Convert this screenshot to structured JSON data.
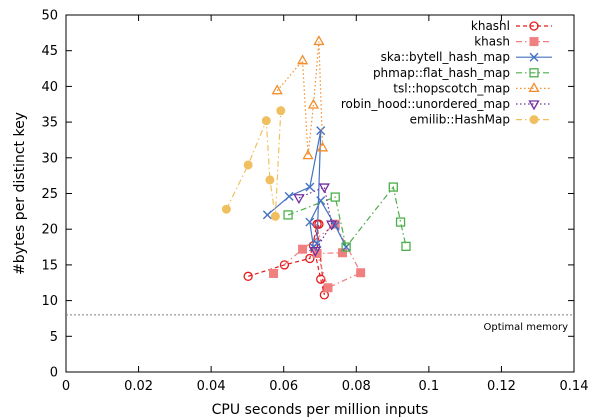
{
  "chart_data": {
    "type": "line",
    "xlabel": "CPU seconds per million inputs",
    "ylabel": "#bytes per distinct key",
    "xlim": [
      0,
      0.14
    ],
    "ylim": [
      0,
      50
    ],
    "xticks": [
      0,
      0.02,
      0.04,
      0.06,
      0.08,
      0.1,
      0.12,
      0.14
    ],
    "xtick_labels": [
      "0",
      "0.02",
      "0.04",
      "0.06",
      "0.08",
      "0.1",
      "0.12",
      "0.14"
    ],
    "yticks": [
      0,
      5,
      10,
      15,
      20,
      25,
      30,
      35,
      40,
      45,
      50
    ],
    "ytick_labels": [
      "0",
      "5",
      "10",
      "15",
      "20",
      "25",
      "30",
      "35",
      "40",
      "45",
      "50"
    ],
    "grid": false,
    "legend_position": "top-right",
    "reference_line": {
      "y": 8,
      "label": "Optimal memory",
      "color": "#808080"
    },
    "series": [
      {
        "name": "khashl",
        "color": "#e41a1c",
        "marker": "circle-open",
        "line": "dashed",
        "x": [
          0.0502,
          0.0602,
          0.0672,
          0.0692,
          0.0712,
          0.0702,
          0.0682,
          0.0697
        ],
        "y": [
          13.4,
          15.0,
          15.9,
          20.7,
          10.8,
          13.0,
          17.7,
          20.7
        ]
      },
      {
        "name": "khash",
        "color": "#f08080",
        "marker": "square-filled",
        "line": "dashdot",
        "x": [
          0.0572,
          0.0652,
          0.0742,
          0.0812,
          0.0722,
          0.0692,
          0.0762
        ],
        "y": [
          13.8,
          17.2,
          20.7,
          13.9,
          11.8,
          16.6,
          16.7
        ]
      },
      {
        "name": "ska::bytell_hash_map",
        "color": "#4472c4",
        "marker": "cross",
        "line": "solid",
        "x": [
          0.0555,
          0.0615,
          0.0672,
          0.0702,
          0.0692,
          0.0682,
          0.0672,
          0.0702,
          0.0742,
          0.0772
        ],
        "y": [
          22.0,
          24.6,
          25.9,
          33.8,
          18.0,
          17.5,
          21.0,
          24.0,
          20.5,
          17.5
        ]
      },
      {
        "name": "phmap::flat_hash_map",
        "color": "#4daf4a",
        "marker": "square-open",
        "line": "dashdot",
        "x": [
          0.0612,
          0.0742,
          0.0772,
          0.0902,
          0.0922,
          0.0937
        ],
        "y": [
          22.0,
          24.5,
          17.5,
          25.9,
          21.0,
          17.6
        ]
      },
      {
        "name": "tsl::hopscotch_map",
        "color": "#f28e2b",
        "marker": "triangle-up",
        "line": "dotted",
        "x": [
          0.0582,
          0.0652,
          0.0667,
          0.0682,
          0.0697,
          0.0707
        ],
        "y": [
          39.4,
          43.6,
          30.3,
          37.4,
          46.3,
          31.4
        ]
      },
      {
        "name": "robin_hood::unordered_map",
        "color": "#7030a0",
        "marker": "triangle-down",
        "line": "dotted",
        "x": [
          0.0642,
          0.0712,
          0.0732,
          0.0687
        ],
        "y": [
          24.4,
          25.9,
          20.7,
          17.0
        ]
      },
      {
        "name": "emilib::HashMap",
        "color": "#f0c060",
        "marker": "circle-filled",
        "line": "dashdot",
        "x": [
          0.0442,
          0.0502,
          0.0552,
          0.0562,
          0.0577,
          0.0592
        ],
        "y": [
          22.8,
          29.0,
          35.2,
          26.9,
          21.8,
          36.6
        ]
      }
    ]
  }
}
